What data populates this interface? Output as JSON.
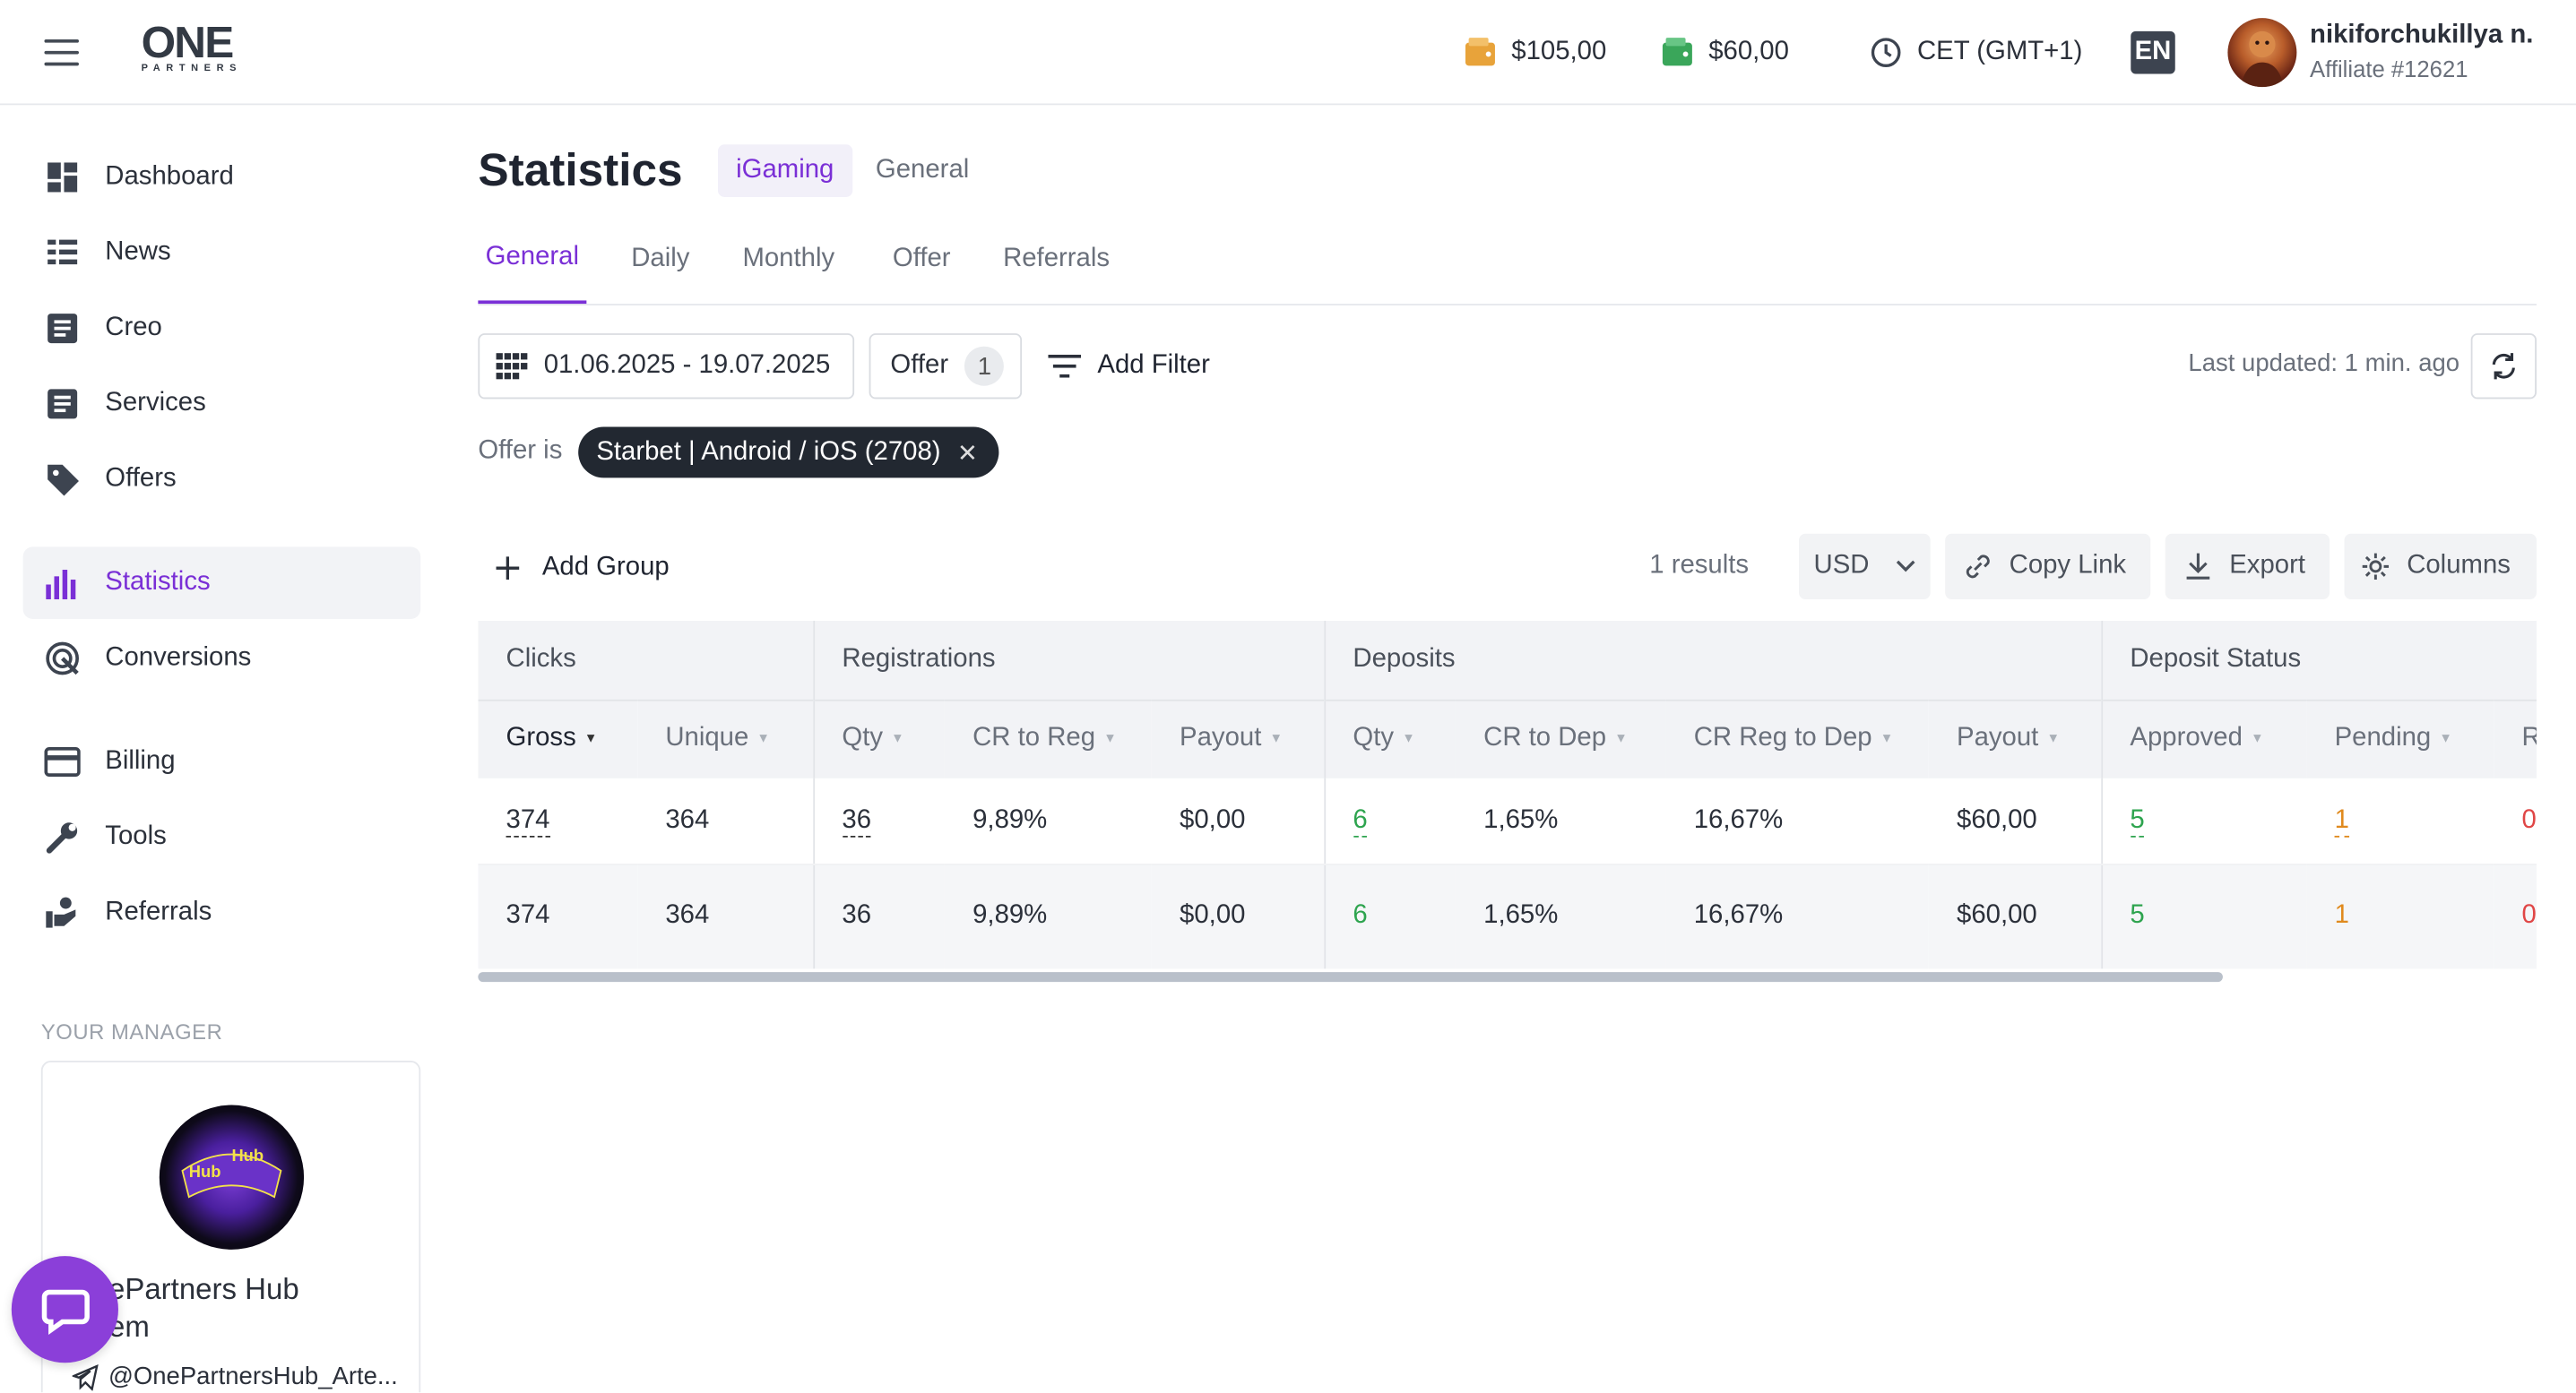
{
  "header": {
    "logo_big": "ONE",
    "logo_small": "PARTNERS",
    "balance_1": "$105,00",
    "balance_2": "$60,00",
    "timezone": "CET (GMT+1)",
    "language": "EN",
    "user_name": "nikiforchukillya n.",
    "user_sub": "Affiliate #12621"
  },
  "sidebar": {
    "items": [
      {
        "label": "Dashboard",
        "icon": "dashboard-icon"
      },
      {
        "label": "News",
        "icon": "news-icon"
      },
      {
        "label": "Creo",
        "icon": "creo-icon"
      },
      {
        "label": "Services",
        "icon": "services-icon"
      },
      {
        "label": "Offers",
        "icon": "tag-icon"
      },
      {
        "label": "Statistics",
        "icon": "bar-chart-icon",
        "active": true
      },
      {
        "label": "Conversions",
        "icon": "conversions-icon"
      },
      {
        "label": "Billing",
        "icon": "card-icon"
      },
      {
        "label": "Tools",
        "icon": "wrench-icon"
      },
      {
        "label": "Referrals",
        "icon": "referrals-icon"
      }
    ],
    "manager_title": "YOUR MANAGER",
    "manager_name": "ePartners Hub\nem",
    "manager_name_line1": "ePartners Hub",
    "manager_name_line2": "em",
    "manager_telegram": "@OnePartnersHub_Arte...",
    "manager_logo_text": "Hub"
  },
  "page": {
    "title": "Statistics",
    "segment_on": "iGaming",
    "segment_off": "General",
    "tabs": [
      "General",
      "Daily",
      "Monthly",
      "Offer",
      "Referrals"
    ],
    "active_tab": "General",
    "date_range": "01.06.2025 - 19.07.2025",
    "offer_filter_label": "Offer",
    "offer_filter_count": "1",
    "add_filter": "Add Filter",
    "last_updated": "Last updated: 1 min. ago",
    "offer_is": "Offer is",
    "chip": "Starbet | Android / iOS (2708)",
    "add_group": "Add Group",
    "results": "1  results",
    "currency": "USD",
    "copy_link": "Copy Link",
    "export": "Export",
    "columns": "Columns"
  },
  "table": {
    "groups": [
      "Clicks",
      "Registrations",
      "Deposits",
      "Deposit Status"
    ],
    "headers": [
      "Gross",
      "Unique",
      "Qty",
      "CR to Reg",
      "Payout",
      "Qty",
      "CR to Dep",
      "CR Reg to Dep",
      "Payout",
      "Approved",
      "Pending",
      "R"
    ],
    "row": [
      "374",
      "364",
      "36",
      "9,89%",
      "$0,00",
      "6",
      "1,65%",
      "16,67%",
      "$60,00",
      "5",
      "1",
      "0"
    ],
    "total": [
      "374",
      "364",
      "36",
      "9,89%",
      "$0,00",
      "6",
      "1,65%",
      "16,67%",
      "$60,00",
      "5",
      "1",
      "0"
    ]
  },
  "colors": {
    "accent": "#7a2fd6",
    "green": "#2ea44f",
    "orange": "#e08a1e",
    "red": "#e04646"
  }
}
